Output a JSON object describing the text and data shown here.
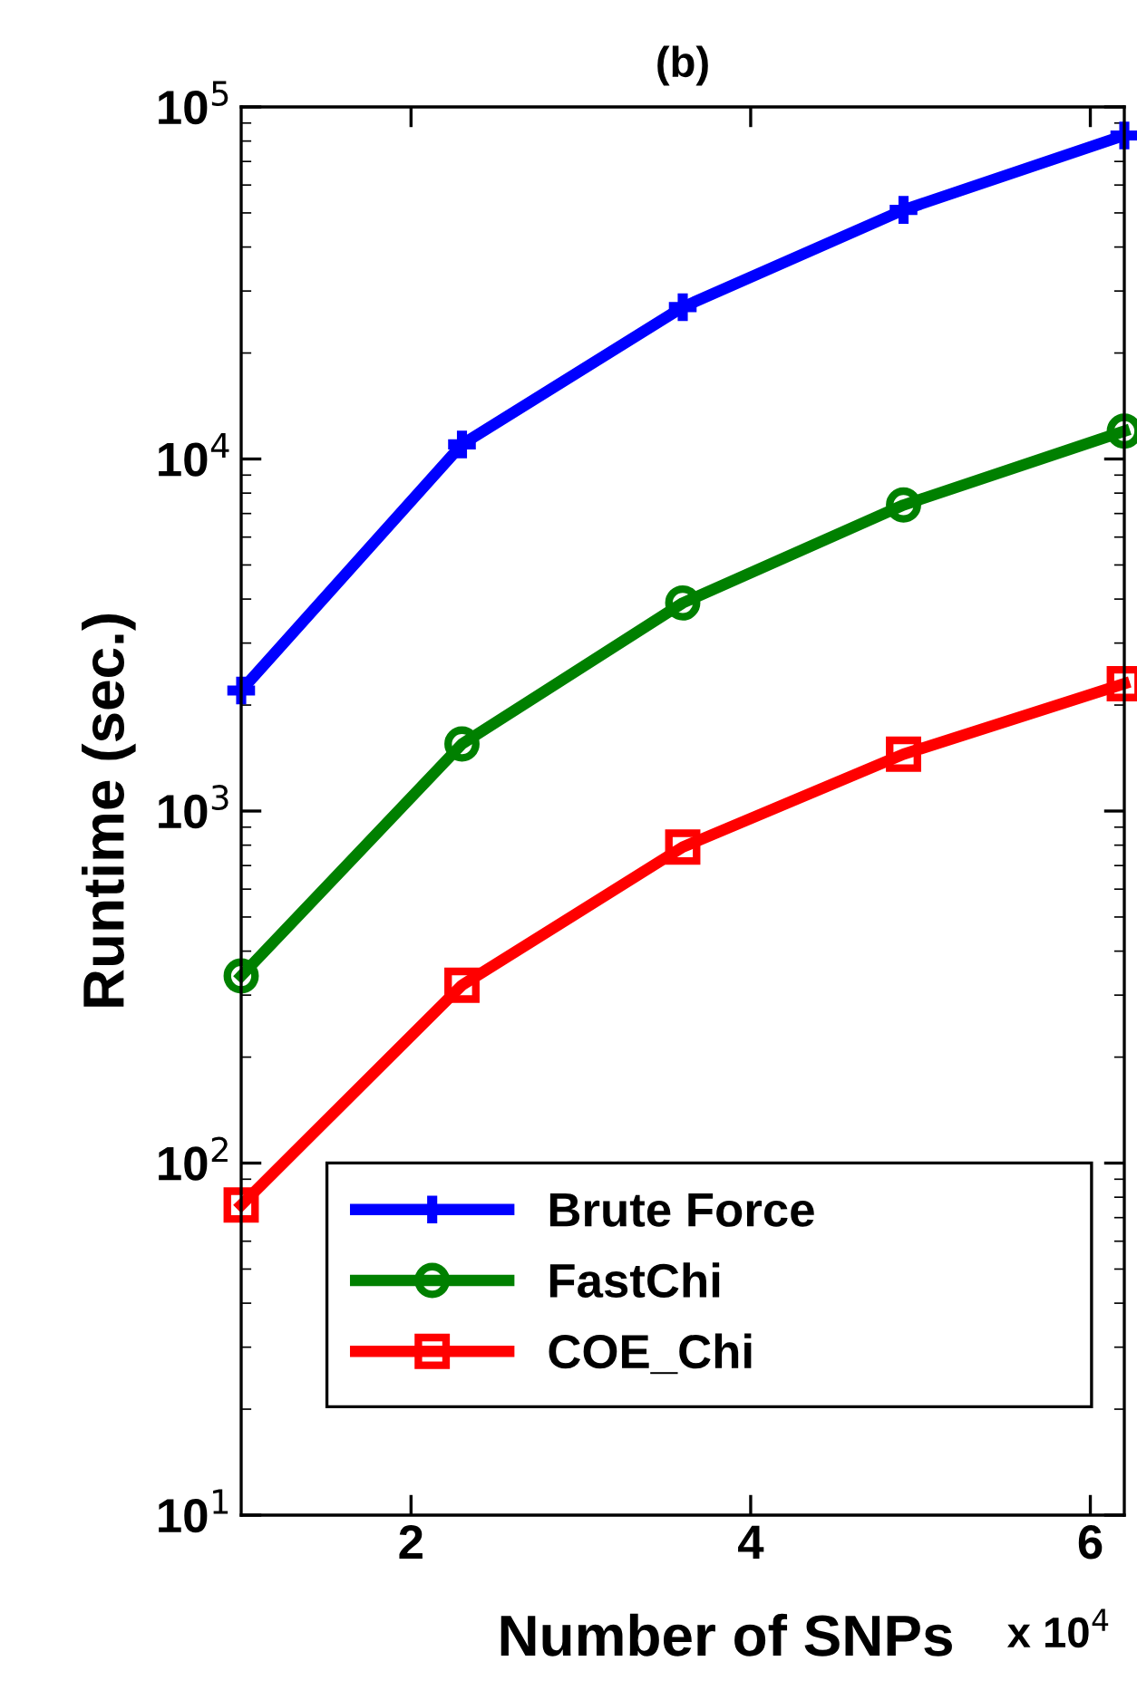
{
  "chart_data": {
    "type": "line",
    "title": "(b)",
    "xlabel": "Number of SNPs",
    "ylabel": "Runtime (sec.)",
    "annotations": [
      "x 10$^{4}$"
    ],
    "x": [
      1,
      2.3,
      3.6,
      4.9,
      6.2
    ],
    "series": [
      {
        "name": "Brute Force",
        "color": "#0000ff",
        "marker": "cross",
        "values": [
          2200,
          11000,
          27000,
          51000,
          83000
        ]
      },
      {
        "name": "FastChi",
        "color": "#008000",
        "marker": "circle",
        "values": [
          340,
          1550,
          3900,
          7400,
          12000
        ]
      },
      {
        "name": "COE_Chi",
        "color": "#ff0000",
        "marker": "square",
        "values": [
          76,
          320,
          790,
          1450,
          2300
        ]
      }
    ],
    "log": "y",
    "xlim": [
      1,
      6.2
    ],
    "xticks": [
      2,
      4,
      6
    ],
    "ylim": [
      10,
      100000
    ],
    "yticks": [
      {
        "value": 10,
        "label": "10$^{1}$"
      },
      {
        "value": 100,
        "label": "10$^{2}$"
      },
      {
        "value": 1000,
        "label": "10$^{3}$"
      },
      {
        "value": 10000,
        "label": "10$^{4}$"
      },
      {
        "value": 100000,
        "label": "10$^{5}$"
      }
    ],
    "grid": false,
    "legend": "bottom",
    "line_style": "solid"
  }
}
